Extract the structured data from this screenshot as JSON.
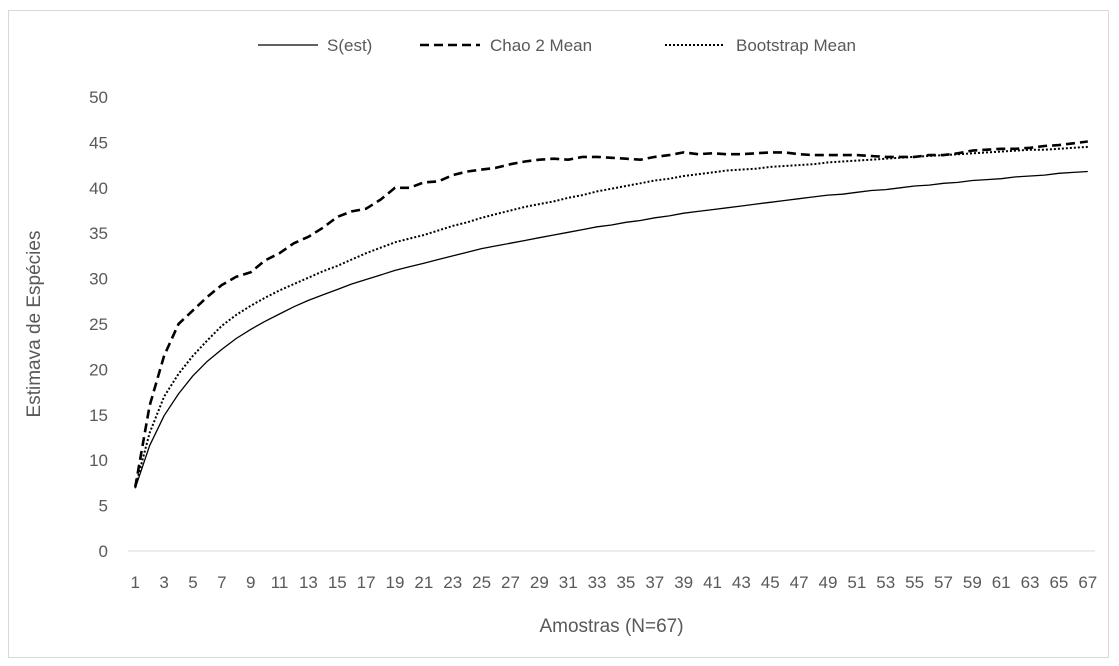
{
  "chart_data": {
    "type": "line",
    "xlabel": "Amostras (N=67)",
    "ylabel": "Estimava de Espécies",
    "ylim": [
      0,
      50
    ],
    "yticks": [
      "0",
      "5",
      "10",
      "15",
      "20",
      "25",
      "30",
      "35",
      "40",
      "45",
      "50"
    ],
    "x": [
      1,
      2,
      3,
      4,
      5,
      6,
      7,
      8,
      9,
      10,
      11,
      12,
      13,
      14,
      15,
      16,
      17,
      18,
      19,
      20,
      21,
      22,
      23,
      24,
      25,
      26,
      27,
      28,
      29,
      30,
      31,
      32,
      33,
      34,
      35,
      36,
      37,
      38,
      39,
      40,
      41,
      42,
      43,
      44,
      45,
      46,
      47,
      48,
      49,
      50,
      51,
      52,
      53,
      54,
      55,
      56,
      57,
      58,
      59,
      60,
      61,
      62,
      63,
      64,
      65,
      66,
      67
    ],
    "xticks": [
      "1",
      "3",
      "5",
      "7",
      "9",
      "11",
      "13",
      "15",
      "17",
      "19",
      "21",
      "23",
      "25",
      "27",
      "29",
      "31",
      "33",
      "35",
      "37",
      "39",
      "41",
      "43",
      "45",
      "47",
      "49",
      "51",
      "53",
      "55",
      "57",
      "59",
      "61",
      "63",
      "65",
      "67"
    ],
    "grid": false,
    "legend_position": "top",
    "series": [
      {
        "name": "S(est)",
        "style": "solid",
        "color": "#000000",
        "values": [
          6.9,
          11.6,
          14.9,
          17.3,
          19.3,
          20.9,
          22.2,
          23.4,
          24.4,
          25.3,
          26.1,
          26.9,
          27.6,
          28.2,
          28.8,
          29.4,
          29.9,
          30.4,
          30.9,
          31.3,
          31.7,
          32.1,
          32.5,
          32.9,
          33.3,
          33.6,
          33.9,
          34.2,
          34.5,
          34.8,
          35.1,
          35.4,
          35.7,
          35.9,
          36.2,
          36.4,
          36.7,
          36.9,
          37.2,
          37.4,
          37.6,
          37.8,
          38.0,
          38.2,
          38.4,
          38.6,
          38.8,
          39.0,
          39.2,
          39.3,
          39.5,
          39.7,
          39.8,
          40.0,
          40.2,
          40.3,
          40.5,
          40.6,
          40.8,
          40.9,
          41.0,
          41.2,
          41.3,
          41.4,
          41.6,
          41.7,
          41.8
        ]
      },
      {
        "name": "Chao 2 Mean",
        "style": "dashed",
        "color": "#000000",
        "values": [
          7.0,
          16.0,
          21.5,
          25.0,
          26.5,
          28.0,
          29.3,
          30.2,
          30.7,
          32.0,
          32.8,
          33.9,
          34.6,
          35.6,
          36.8,
          37.4,
          37.7,
          38.7,
          40.0,
          40.0,
          40.6,
          40.7,
          41.4,
          41.8,
          42.0,
          42.2,
          42.6,
          42.9,
          43.1,
          43.2,
          43.1,
          43.4,
          43.4,
          43.3,
          43.2,
          43.1,
          43.4,
          43.6,
          43.9,
          43.7,
          43.8,
          43.7,
          43.7,
          43.8,
          43.9,
          43.9,
          43.7,
          43.6,
          43.6,
          43.6,
          43.6,
          43.5,
          43.4,
          43.4,
          43.4,
          43.6,
          43.6,
          43.8,
          44.1,
          44.2,
          44.3,
          44.3,
          44.4,
          44.6,
          44.7,
          44.9,
          45.1
        ]
      },
      {
        "name": "Bootstrap Mean",
        "style": "dotted",
        "color": "#000000",
        "values": [
          7.0,
          13.0,
          17.0,
          19.5,
          21.5,
          23.2,
          24.8,
          26.0,
          27.0,
          27.9,
          28.7,
          29.4,
          30.1,
          30.8,
          31.4,
          32.1,
          32.8,
          33.4,
          34.0,
          34.4,
          34.8,
          35.3,
          35.8,
          36.2,
          36.7,
          37.1,
          37.5,
          37.9,
          38.2,
          38.5,
          38.9,
          39.2,
          39.6,
          39.9,
          40.2,
          40.5,
          40.8,
          41.0,
          41.3,
          41.5,
          41.7,
          41.9,
          42.0,
          42.1,
          42.3,
          42.4,
          42.5,
          42.6,
          42.8,
          42.9,
          43.0,
          43.1,
          43.2,
          43.3,
          43.4,
          43.5,
          43.6,
          43.7,
          43.8,
          43.9,
          44.0,
          44.1,
          44.2,
          44.2,
          44.3,
          44.4,
          44.5
        ]
      }
    ]
  }
}
